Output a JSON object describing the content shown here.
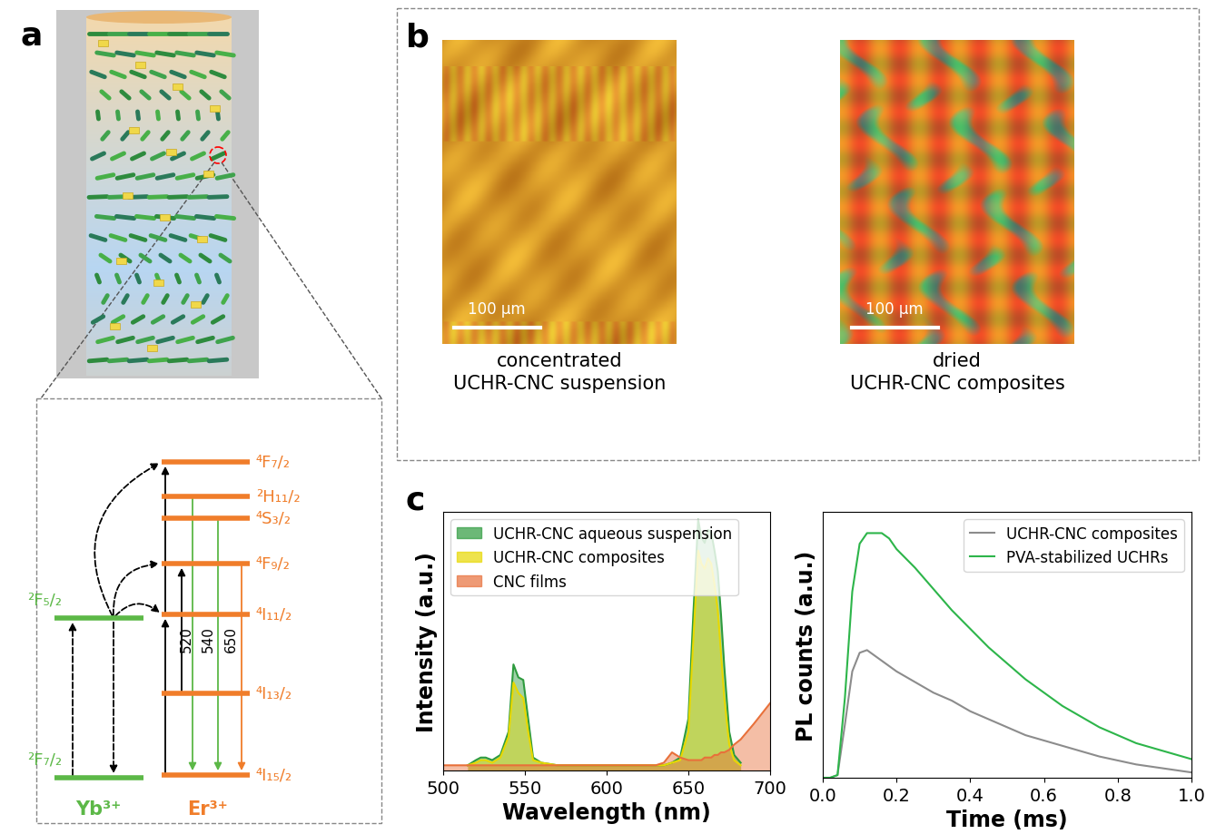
{
  "panel_labels": [
    "a",
    "b",
    "c"
  ],
  "energy_diagram": {
    "ions": [
      "Yb³⁺",
      "Er³⁺"
    ],
    "yb_levels": [
      "²F₅/₂",
      "²F₇/₂"
    ],
    "er_levels": [
      "⁴F₇/₂",
      "²H₁₁/₂",
      "⁴S₃/₂",
      "⁴F₉/₂",
      "⁴I₁₁/₂",
      "⁴I₁₃/₂",
      "⁴I₁₅/₂"
    ],
    "emission_labels": [
      "520",
      "540",
      "650"
    ]
  },
  "micrographs": [
    {
      "caption": "concentrated\nUCHR-CNC suspension",
      "scale_bar": "100 µm"
    },
    {
      "caption": "dried\nUCHR-CNC composites",
      "scale_bar": "100 µm"
    }
  ],
  "chart_data": [
    {
      "type": "area",
      "x_label": "Wavelength (nm)",
      "y_label": "Intensity (a.u.)",
      "x": [
        500,
        505,
        510,
        515,
        520,
        523,
        526,
        530,
        535,
        540,
        543,
        546,
        549,
        552,
        555,
        560,
        570,
        580,
        600,
        620,
        630,
        635,
        640,
        645,
        650,
        653,
        656,
        658,
        660,
        662,
        664,
        666,
        668,
        670,
        672,
        675,
        678,
        682,
        690,
        700
      ],
      "series": [
        {
          "name": "UCHR-CNC aqueous suspension",
          "color": "#2e9b3e",
          "values": [
            null,
            null,
            null,
            0.02,
            0.04,
            0.05,
            0.05,
            0.04,
            0.06,
            0.15,
            0.41,
            0.36,
            0.35,
            0.2,
            0.05,
            0.03,
            0.02,
            0.02,
            0.02,
            0.02,
            0.02,
            0.02,
            0.03,
            0.05,
            0.2,
            0.6,
            0.97,
            0.9,
            0.88,
            0.93,
            0.92,
            0.85,
            0.77,
            0.6,
            0.4,
            0.15,
            0.06,
            0.03,
            null,
            null
          ]
        },
        {
          "name": "UCHR-CNC composites",
          "color": "#e8d800",
          "values": [
            null,
            null,
            null,
            0.02,
            0.03,
            0.04,
            0.04,
            0.03,
            0.05,
            0.13,
            0.34,
            0.3,
            0.28,
            0.15,
            0.04,
            0.03,
            0.02,
            0.02,
            0.02,
            0.02,
            0.02,
            0.02,
            0.03,
            0.04,
            0.15,
            0.5,
            0.85,
            0.8,
            0.78,
            0.82,
            0.8,
            0.72,
            0.62,
            0.45,
            0.28,
            0.1,
            0.04,
            0.02,
            null,
            null
          ]
        },
        {
          "name": "CNC films",
          "color": "#e8703a",
          "values": [
            0.02,
            0.02,
            0.02,
            0.02,
            0.02,
            0.02,
            0.02,
            0.02,
            0.02,
            0.02,
            0.02,
            0.02,
            0.02,
            0.02,
            0.02,
            0.02,
            0.02,
            0.02,
            0.02,
            0.02,
            0.02,
            0.03,
            0.07,
            0.05,
            0.04,
            0.04,
            0.04,
            0.04,
            0.05,
            0.05,
            0.05,
            0.06,
            0.06,
            0.07,
            0.07,
            0.08,
            0.1,
            0.12,
            0.18,
            0.26
          ]
        }
      ],
      "xlim": [
        500,
        700
      ],
      "xticks": [
        500,
        550,
        600,
        650,
        700
      ],
      "ylim": [
        0,
        1
      ],
      "tick_labels": "x",
      "legend": "upper left"
    },
    {
      "type": "line",
      "x_label": "Time (ms)",
      "y_label": "PL counts (a.u.)",
      "x": [
        0.0,
        0.02,
        0.04,
        0.06,
        0.08,
        0.1,
        0.12,
        0.14,
        0.16,
        0.18,
        0.2,
        0.25,
        0.3,
        0.35,
        0.4,
        0.45,
        0.5,
        0.55,
        0.6,
        0.65,
        0.7,
        0.75,
        0.8,
        0.85,
        0.9,
        0.95,
        1.0
      ],
      "series": [
        {
          "name": "UCHR-CNC composites",
          "color": "#8c8c8c",
          "values": [
            0,
            0,
            0.01,
            0.2,
            0.4,
            0.47,
            0.48,
            0.46,
            0.44,
            0.42,
            0.4,
            0.36,
            0.32,
            0.29,
            0.25,
            0.22,
            0.19,
            0.16,
            0.14,
            0.12,
            0.1,
            0.08,
            0.065,
            0.05,
            0.04,
            0.03,
            0.02
          ]
        },
        {
          "name": "PVA-stabilized UCHRs",
          "color": "#2db54a",
          "values": [
            0,
            0,
            0.01,
            0.3,
            0.7,
            0.88,
            0.92,
            0.92,
            0.92,
            0.9,
            0.86,
            0.79,
            0.71,
            0.63,
            0.56,
            0.49,
            0.43,
            0.37,
            0.32,
            0.27,
            0.23,
            0.19,
            0.16,
            0.13,
            0.11,
            0.09,
            0.07
          ]
        }
      ],
      "xlim": [
        0.0,
        1.0
      ],
      "xticks": [
        0.0,
        0.2,
        0.4,
        0.6,
        0.8,
        1.0
      ],
      "ylim": [
        0,
        1
      ],
      "tick_labels": "x",
      "legend": "upper right"
    }
  ]
}
